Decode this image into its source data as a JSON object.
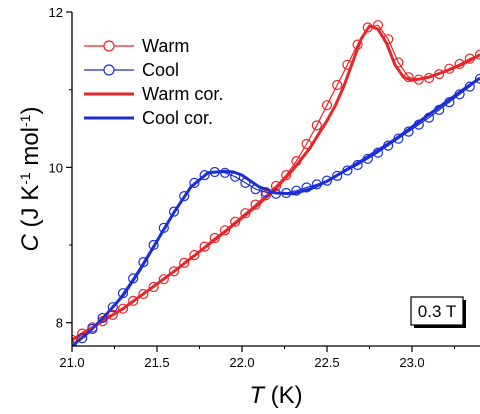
{
  "chart_data": {
    "type": "line",
    "xlabel": "T (K)",
    "ylabel": "C (J K⁻¹ mol⁻¹)",
    "xlim": [
      21.0,
      23.4
    ],
    "ylim": [
      7.7,
      12.0
    ],
    "xticks": [
      21.0,
      21.5,
      22.0,
      22.5,
      23.0
    ],
    "xtick_labels": [
      "21.0",
      "21.5",
      "22.0",
      "22.5",
      "23.0"
    ],
    "yticks": [
      8,
      10,
      12
    ],
    "ytick_labels": [
      "8",
      "10",
      "12"
    ],
    "legend_position": "top-left",
    "annotation": "0.3 T",
    "colors": {
      "warm": "#e8262a",
      "cool": "#1a2fd6"
    },
    "series": [
      {
        "name": "Warm",
        "style": "line+open-circles",
        "color": "#e8262a",
        "x": [
          21.0,
          21.06,
          21.12,
          21.18,
          21.24,
          21.3,
          21.36,
          21.42,
          21.48,
          21.54,
          21.6,
          21.66,
          21.72,
          21.78,
          21.84,
          21.9,
          21.96,
          22.02,
          22.08,
          22.14,
          22.2,
          22.26,
          22.32,
          22.38,
          22.44,
          22.5,
          22.56,
          22.62,
          22.68,
          22.74,
          22.8,
          22.86,
          22.92,
          22.98,
          23.04,
          23.1,
          23.16,
          23.22,
          23.28,
          23.34,
          23.4
        ],
        "values": [
          7.78,
          7.86,
          7.94,
          8.02,
          8.1,
          8.18,
          8.28,
          8.37,
          8.46,
          8.56,
          8.66,
          8.77,
          8.87,
          8.98,
          9.09,
          9.19,
          9.3,
          9.41,
          9.52,
          9.64,
          9.76,
          9.9,
          10.08,
          10.3,
          10.54,
          10.8,
          11.06,
          11.32,
          11.58,
          11.8,
          11.83,
          11.65,
          11.35,
          11.16,
          11.13,
          11.15,
          11.2,
          11.27,
          11.33,
          11.4,
          11.45
        ]
      },
      {
        "name": "Cool",
        "style": "line+open-circles",
        "color": "#1a2fd6",
        "x": [
          21.0,
          21.06,
          21.12,
          21.18,
          21.24,
          21.3,
          21.36,
          21.42,
          21.48,
          21.54,
          21.6,
          21.66,
          21.72,
          21.78,
          21.84,
          21.9,
          21.96,
          22.02,
          22.08,
          22.14,
          22.2,
          22.26,
          22.32,
          22.38,
          22.44,
          22.5,
          22.56,
          22.62,
          22.68,
          22.74,
          22.8,
          22.86,
          22.92,
          22.98,
          23.04,
          23.1,
          23.16,
          23.22,
          23.28,
          23.34,
          23.4
        ],
        "values": [
          7.7,
          7.8,
          7.92,
          8.06,
          8.2,
          8.38,
          8.57,
          8.78,
          9.0,
          9.22,
          9.43,
          9.63,
          9.8,
          9.9,
          9.94,
          9.93,
          9.88,
          9.8,
          9.72,
          9.68,
          9.66,
          9.67,
          9.7,
          9.74,
          9.78,
          9.83,
          9.89,
          9.96,
          10.03,
          10.11,
          10.19,
          10.28,
          10.37,
          10.46,
          10.55,
          10.64,
          10.74,
          10.84,
          10.94,
          11.04,
          11.14
        ]
      },
      {
        "name": "Warm cor.",
        "style": "line",
        "color": "#e8262a",
        "x": [
          21.0,
          21.1,
          21.2,
          21.3,
          21.4,
          21.5,
          21.6,
          21.7,
          21.8,
          21.9,
          22.0,
          22.1,
          22.2,
          22.3,
          22.4,
          22.5,
          22.55,
          22.6,
          22.65,
          22.7,
          22.75,
          22.8,
          22.85,
          22.9,
          22.95,
          23.0,
          23.05,
          23.1,
          23.2,
          23.3,
          23.4
        ],
        "values": [
          7.78,
          7.91,
          8.05,
          8.18,
          8.34,
          8.5,
          8.66,
          8.83,
          9.0,
          9.17,
          9.35,
          9.53,
          9.73,
          9.97,
          10.25,
          10.6,
          10.8,
          11.05,
          11.35,
          11.65,
          11.82,
          11.78,
          11.6,
          11.32,
          11.16,
          11.12,
          11.14,
          11.16,
          11.24,
          11.33,
          11.45
        ]
      },
      {
        "name": "Cool cor.",
        "style": "line",
        "color": "#1a2fd6",
        "x": [
          21.0,
          21.1,
          21.2,
          21.3,
          21.4,
          21.5,
          21.6,
          21.7,
          21.8,
          21.9,
          21.95,
          22.0,
          22.1,
          22.2,
          22.3,
          22.4,
          22.5,
          22.6,
          22.7,
          22.8,
          22.9,
          23.0,
          23.1,
          23.2,
          23.3,
          23.4
        ],
        "values": [
          7.7,
          7.88,
          8.1,
          8.35,
          8.68,
          9.05,
          9.42,
          9.75,
          9.93,
          9.95,
          9.94,
          9.9,
          9.75,
          9.67,
          9.66,
          9.72,
          9.82,
          9.95,
          10.08,
          10.22,
          10.36,
          10.52,
          10.68,
          10.84,
          11.0,
          11.15
        ]
      }
    ]
  }
}
